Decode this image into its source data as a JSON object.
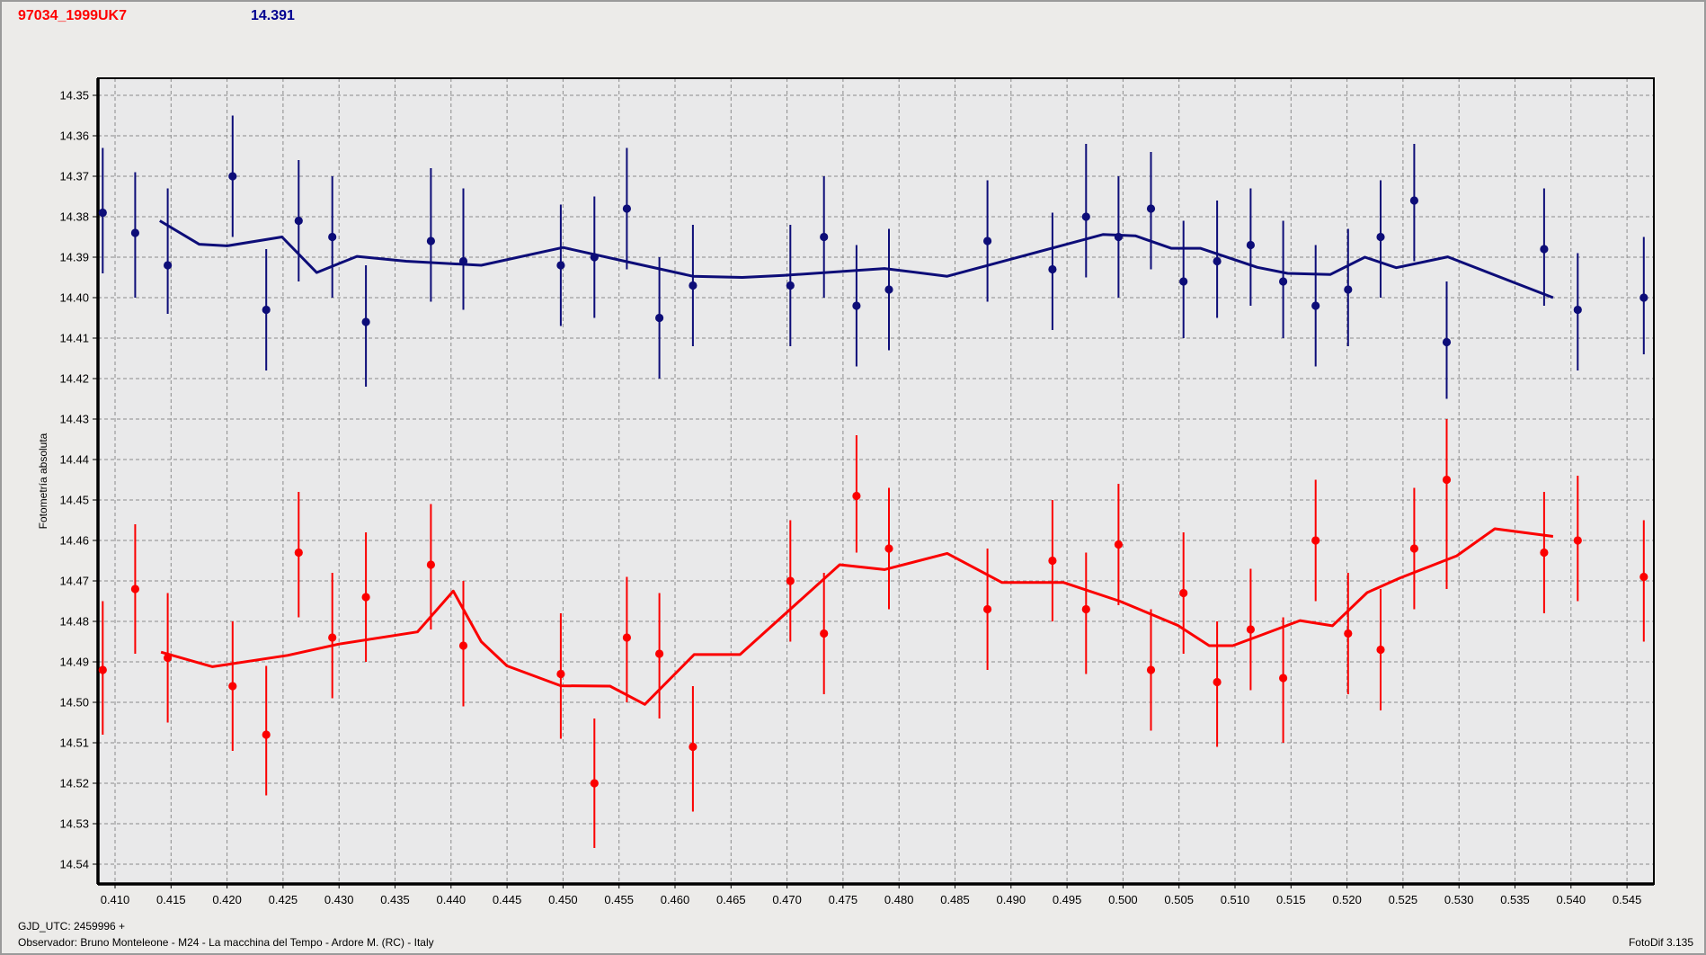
{
  "header": {
    "object_name": "97034_1999UK7",
    "mean_magnitude": "14.391"
  },
  "footer": {
    "gjd_line": "GJD_UTC: 2459996 +",
    "observer_line": "Observador: Bruno Monteleone - M24 - La macchina del Tempo - Ardore M. (RC) - Italy",
    "app_version": "FotoDif 3.135"
  },
  "colors": {
    "object_name_text": "#ff0000",
    "magnitude_text": "#000090",
    "series_blue": "#0d0d78",
    "series_red": "#fb0000",
    "grid": "#8c8c8c",
    "plot_border": "#000000",
    "window_bg": "#ecebe9",
    "plot_bg": "#e9e9ea"
  },
  "chart_data": {
    "type": "scatter",
    "title": "",
    "xlabel": "",
    "ylabel": "Fotometría absoluta",
    "grid": true,
    "y_inverted": true,
    "xlim": [
      0.4085,
      0.5475
    ],
    "ylim": [
      14.346,
      14.545
    ],
    "x_tick_labels": [
      "0.410",
      "0.415",
      "0.420",
      "0.425",
      "0.430",
      "0.435",
      "0.440",
      "0.445",
      "0.450",
      "0.455",
      "0.460",
      "0.465",
      "0.470",
      "0.475",
      "0.480",
      "0.485",
      "0.490",
      "0.495",
      "0.500",
      "0.505",
      "0.510",
      "0.515",
      "0.520",
      "0.525",
      "0.530",
      "0.535",
      "0.540",
      "0.545"
    ],
    "y_tick_labels": [
      "14.35",
      "14.36",
      "14.37",
      "14.38",
      "14.39",
      "14.40",
      "14.41",
      "14.42",
      "14.43",
      "14.44",
      "14.45",
      "14.46",
      "14.47",
      "14.48",
      "14.49",
      "14.50",
      "14.51",
      "14.52",
      "14.53",
      "14.54"
    ],
    "x": [
      0.4089,
      0.4118,
      0.4147,
      0.4205,
      0.4235,
      0.4264,
      0.4294,
      0.4324,
      0.4382,
      0.4411,
      0.4498,
      0.4528,
      0.4557,
      0.4586,
      0.4616,
      0.4703,
      0.4733,
      0.4762,
      0.4791,
      0.4879,
      0.4937,
      0.4967,
      0.4996,
      0.5025,
      0.5054,
      0.5084,
      0.5114,
      0.5143,
      0.5172,
      0.5201,
      0.523,
      0.526,
      0.5289,
      0.5376,
      0.5406,
      0.5465
    ],
    "series": [
      {
        "name": "blue-series",
        "color": "#0d0d78",
        "y": [
          14.379,
          14.384,
          14.392,
          14.37,
          14.403,
          14.381,
          14.385,
          14.406,
          14.386,
          14.391,
          14.392,
          14.39,
          14.378,
          14.405,
          14.397,
          14.397,
          14.385,
          14.402,
          14.398,
          14.386,
          14.393,
          14.38,
          14.385,
          14.378,
          14.396,
          14.391,
          14.387,
          14.396,
          14.402,
          14.398,
          14.385,
          14.376,
          14.411,
          14.388,
          14.403,
          14.4
        ],
        "err_lo": [
          14.363,
          14.369,
          14.373,
          14.355,
          14.388,
          14.366,
          14.37,
          14.392,
          14.368,
          14.373,
          14.377,
          14.375,
          14.363,
          14.39,
          14.382,
          14.382,
          14.37,
          14.387,
          14.383,
          14.371,
          14.379,
          14.362,
          14.37,
          14.364,
          14.381,
          14.376,
          14.373,
          14.381,
          14.387,
          14.383,
          14.371,
          14.362,
          14.396,
          14.373,
          14.389,
          14.385
        ],
        "err_hi": [
          14.394,
          14.4,
          14.404,
          14.385,
          14.418,
          14.396,
          14.4,
          14.422,
          14.401,
          14.403,
          14.407,
          14.405,
          14.393,
          14.42,
          14.412,
          14.412,
          14.4,
          14.417,
          14.413,
          14.401,
          14.408,
          14.395,
          14.4,
          14.393,
          14.41,
          14.405,
          14.402,
          14.41,
          14.417,
          14.412,
          14.4,
          14.391,
          14.425,
          14.402,
          14.418,
          14.414
        ],
        "fit": [
          [
            0.414,
            14.381
          ],
          [
            0.4175,
            14.3868
          ],
          [
            0.42,
            14.3872
          ],
          [
            0.4249,
            14.385
          ],
          [
            0.428,
            14.3938
          ],
          [
            0.4316,
            14.3898
          ],
          [
            0.436,
            14.391
          ],
          [
            0.4427,
            14.392
          ],
          [
            0.45,
            14.3876
          ],
          [
            0.4557,
            14.3911
          ],
          [
            0.4616,
            14.3947
          ],
          [
            0.466,
            14.395
          ],
          [
            0.4697,
            14.3945
          ],
          [
            0.4787,
            14.3928
          ],
          [
            0.4843,
            14.3947
          ],
          [
            0.49,
            14.3905
          ],
          [
            0.4982,
            14.3844
          ],
          [
            0.5011,
            14.3847
          ],
          [
            0.5043,
            14.3878
          ],
          [
            0.5069,
            14.3878
          ],
          [
            0.512,
            14.3925
          ],
          [
            0.5147,
            14.394
          ],
          [
            0.5185,
            14.3943
          ],
          [
            0.5216,
            14.39
          ],
          [
            0.5244,
            14.3926
          ],
          [
            0.529,
            14.3899
          ],
          [
            0.5384,
            14.4
          ]
        ]
      },
      {
        "name": "red-series",
        "color": "#fb0000",
        "y": [
          14.492,
          14.472,
          14.489,
          14.496,
          14.508,
          14.463,
          14.484,
          14.474,
          14.466,
          14.486,
          14.493,
          14.52,
          14.484,
          14.488,
          14.511,
          14.47,
          14.483,
          14.449,
          14.462,
          14.477,
          14.465,
          14.477,
          14.461,
          14.492,
          14.473,
          14.495,
          14.482,
          14.494,
          14.46,
          14.483,
          14.487,
          14.462,
          14.445,
          14.463,
          14.46,
          14.469
        ],
        "err_lo": [
          14.475,
          14.456,
          14.473,
          14.48,
          14.491,
          14.448,
          14.468,
          14.458,
          14.451,
          14.47,
          14.478,
          14.504,
          14.469,
          14.473,
          14.496,
          14.455,
          14.468,
          14.434,
          14.447,
          14.462,
          14.45,
          14.463,
          14.446,
          14.477,
          14.458,
          14.48,
          14.467,
          14.479,
          14.445,
          14.468,
          14.472,
          14.447,
          14.43,
          14.448,
          14.444,
          14.455
        ],
        "err_hi": [
          14.508,
          14.488,
          14.505,
          14.512,
          14.523,
          14.479,
          14.499,
          14.49,
          14.482,
          14.501,
          14.509,
          14.536,
          14.5,
          14.504,
          14.527,
          14.485,
          14.498,
          14.463,
          14.477,
          14.492,
          14.48,
          14.493,
          14.476,
          14.507,
          14.488,
          14.511,
          14.497,
          14.51,
          14.475,
          14.498,
          14.502,
          14.477,
          14.472,
          14.478,
          14.475,
          14.485
        ],
        "fit": [
          [
            0.4141,
            14.4876
          ],
          [
            0.4187,
            14.4912
          ],
          [
            0.4254,
            14.4884
          ],
          [
            0.43,
            14.4856
          ],
          [
            0.437,
            14.4826
          ],
          [
            0.4402,
            14.4725
          ],
          [
            0.4427,
            14.485
          ],
          [
            0.445,
            14.491
          ],
          [
            0.4498,
            14.4959
          ],
          [
            0.4542,
            14.496
          ],
          [
            0.4573,
            14.5005
          ],
          [
            0.4617,
            14.4882
          ],
          [
            0.4658,
            14.4882
          ],
          [
            0.4747,
            14.466
          ],
          [
            0.4787,
            14.4672
          ],
          [
            0.4843,
            14.4632
          ],
          [
            0.4892,
            14.4704
          ],
          [
            0.4947,
            14.4704
          ],
          [
            0.4997,
            14.475
          ],
          [
            0.5049,
            14.481
          ],
          [
            0.5077,
            14.486
          ],
          [
            0.5098,
            14.486
          ],
          [
            0.5135,
            14.4822
          ],
          [
            0.5158,
            14.4798
          ],
          [
            0.5187,
            14.4811
          ],
          [
            0.5218,
            14.4729
          ],
          [
            0.5247,
            14.4693
          ],
          [
            0.5298,
            14.4638
          ],
          [
            0.5332,
            14.4571
          ],
          [
            0.5384,
            14.459
          ]
        ]
      }
    ]
  }
}
